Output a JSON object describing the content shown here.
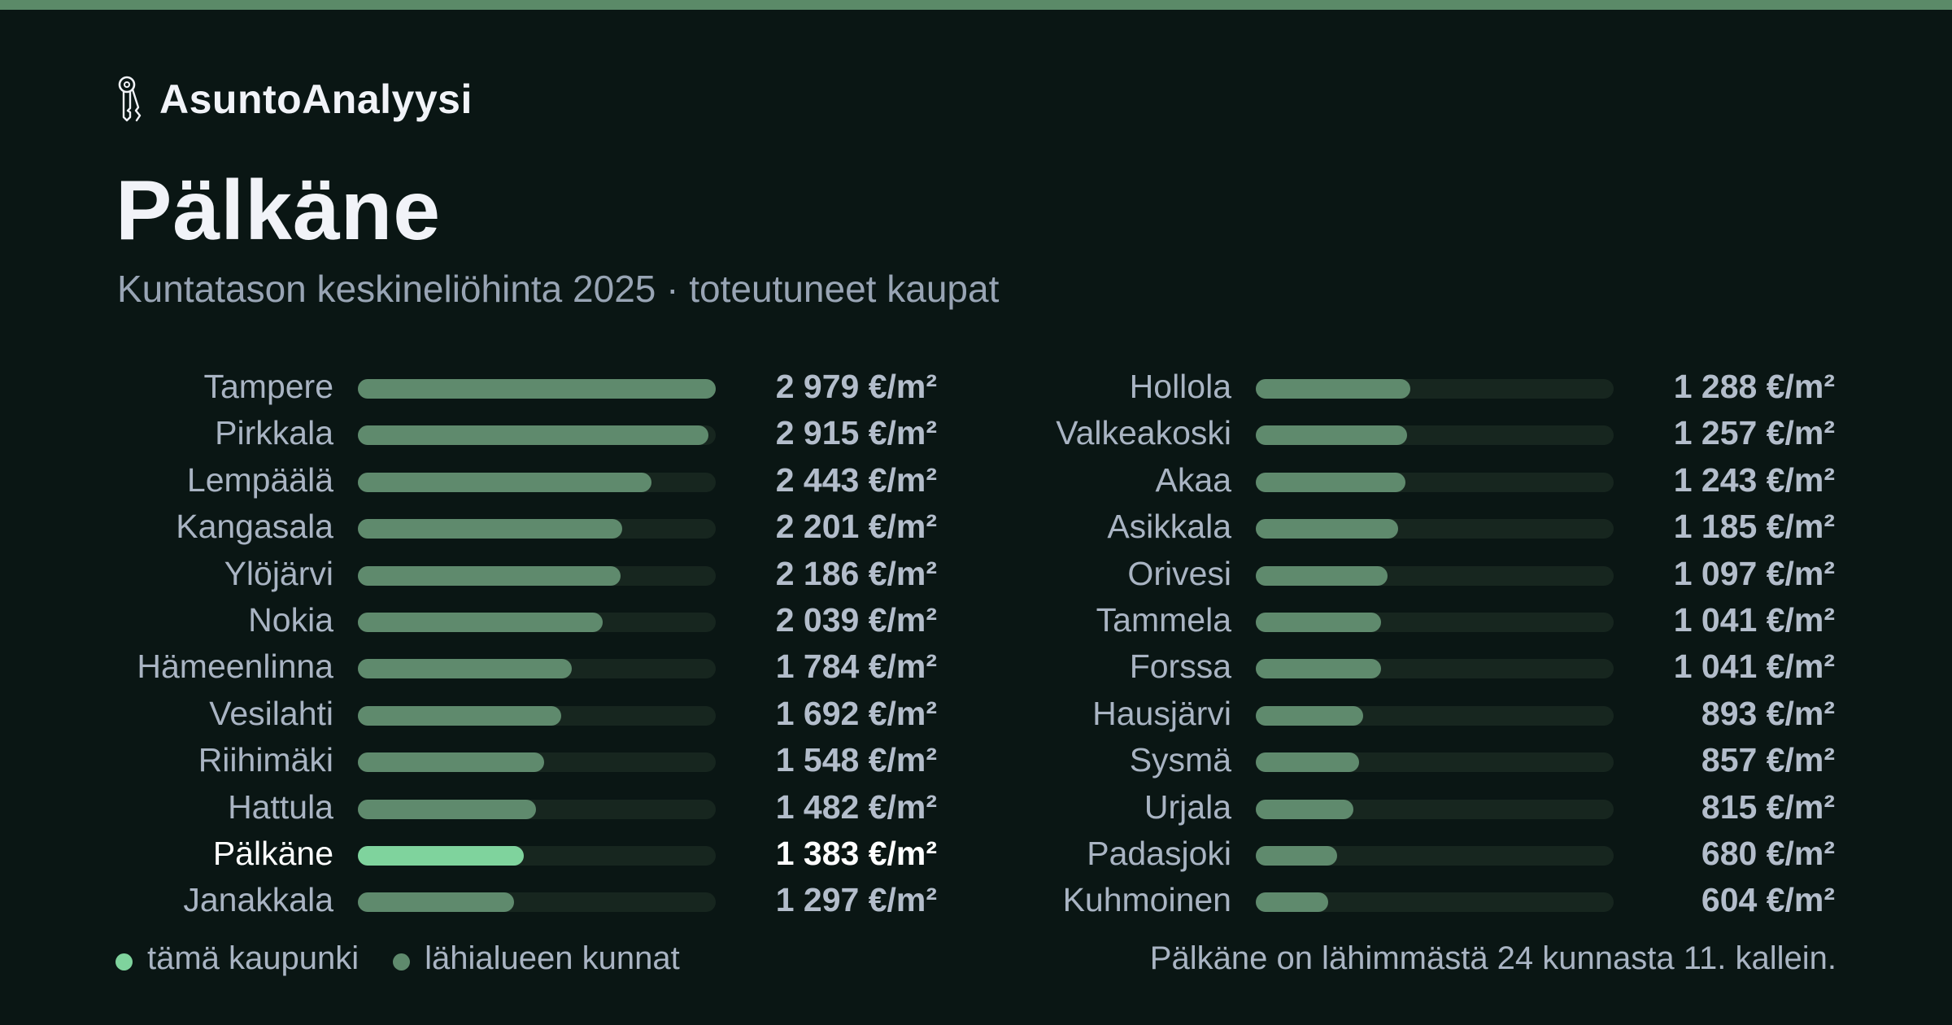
{
  "brand": {
    "name": "AsuntoAnalyysi",
    "icon": "key-icon"
  },
  "title": "Pälkäne",
  "subtitle": "Kuntatason keskineliöhinta 2025 · toteutuneet kaupat",
  "colors": {
    "background": "#0a1614",
    "top_bar": "#5b8a68",
    "bar": "#5f8a6d",
    "bar_highlight": "#7fd39d",
    "track": "#17261f"
  },
  "chart_data": {
    "type": "bar",
    "orientation": "horizontal",
    "unit": "€/m²",
    "xlim": [
      0,
      2979
    ],
    "highlight": "Pälkäne",
    "columns": [
      {
        "rows": [
          {
            "city": "Tampere",
            "value": 2979,
            "label": "2 979 €/m²"
          },
          {
            "city": "Pirkkala",
            "value": 2915,
            "label": "2 915 €/m²"
          },
          {
            "city": "Lempäälä",
            "value": 2443,
            "label": "2 443 €/m²"
          },
          {
            "city": "Kangasala",
            "value": 2201,
            "label": "2 201 €/m²"
          },
          {
            "city": "Ylöjärvi",
            "value": 2186,
            "label": "2 186 €/m²"
          },
          {
            "city": "Nokia",
            "value": 2039,
            "label": "2 039 €/m²"
          },
          {
            "city": "Hämeenlinna",
            "value": 1784,
            "label": "1 784 €/m²"
          },
          {
            "city": "Vesilahti",
            "value": 1692,
            "label": "1 692 €/m²"
          },
          {
            "city": "Riihimäki",
            "value": 1548,
            "label": "1 548 €/m²"
          },
          {
            "city": "Hattula",
            "value": 1482,
            "label": "1 482 €/m²"
          },
          {
            "city": "Pälkäne",
            "value": 1383,
            "label": "1 383 €/m²"
          },
          {
            "city": "Janakkala",
            "value": 1297,
            "label": "1 297 €/m²"
          }
        ]
      },
      {
        "rows": [
          {
            "city": "Hollola",
            "value": 1288,
            "label": "1 288 €/m²"
          },
          {
            "city": "Valkeakoski",
            "value": 1257,
            "label": "1 257 €/m²"
          },
          {
            "city": "Akaa",
            "value": 1243,
            "label": "1 243 €/m²"
          },
          {
            "city": "Asikkala",
            "value": 1185,
            "label": "1 185 €/m²"
          },
          {
            "city": "Orivesi",
            "value": 1097,
            "label": "1 097 €/m²"
          },
          {
            "city": "Tammela",
            "value": 1041,
            "label": "1 041 €/m²"
          },
          {
            "city": "Forssa",
            "value": 1041,
            "label": "1 041 €/m²"
          },
          {
            "city": "Hausjärvi",
            "value": 893,
            "label": "893 €/m²"
          },
          {
            "city": "Sysmä",
            "value": 857,
            "label": "857 €/m²"
          },
          {
            "city": "Urjala",
            "value": 815,
            "label": "815 €/m²"
          },
          {
            "city": "Padasjoki",
            "value": 680,
            "label": "680 €/m²"
          },
          {
            "city": "Kuhmoinen",
            "value": 604,
            "label": "604 €/m²"
          }
        ]
      }
    ]
  },
  "legend": {
    "this_city": "tämä kaupunki",
    "nearby": "lähialueen kunnat"
  },
  "footnote": "Pälkäne on lähimmästä 24 kunnasta 11. kallein."
}
